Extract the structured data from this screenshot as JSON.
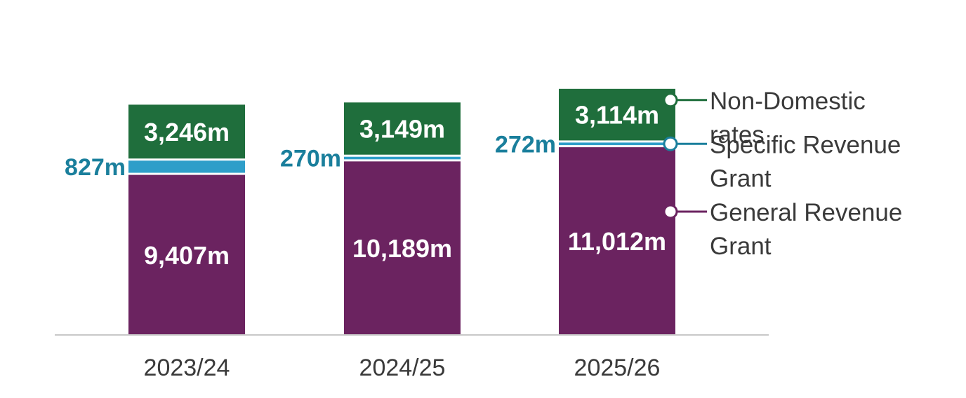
{
  "chart_data": {
    "type": "bar",
    "stacked": true,
    "categories": [
      "2023/24",
      "2024/25",
      "2025/26"
    ],
    "series": [
      {
        "key": "general",
        "name": "General Revenue Grant",
        "legend_lines": [
          "General Revenue",
          "Grant"
        ],
        "values": [
          9407,
          10189,
          11012
        ],
        "labels": [
          "9,407m",
          "10,189m",
          "11,012m"
        ],
        "color": "#6b2360",
        "legend_color": "#6b2360",
        "label_position": "inside"
      },
      {
        "key": "specific",
        "name": "Specific Revenue Grant",
        "legend_lines": [
          "Specific Revenue",
          "Grant"
        ],
        "values": [
          827,
          270,
          272
        ],
        "labels": [
          "827m",
          "270m",
          "272m"
        ],
        "color": "#2e9ec9",
        "legend_color": "#1a7f9c",
        "label_color": "#1a7f9c",
        "label_position": "left"
      },
      {
        "key": "ndr",
        "name": "Non-Domestic rates",
        "legend_lines": [
          "Non-Domestic",
          "rates"
        ],
        "values": [
          3246,
          3149,
          3114
        ],
        "labels": [
          "3,246m",
          "3,149m",
          "3,114m"
        ],
        "color": "#1f6e3c",
        "legend_color": "#1f6e3c",
        "label_position": "inside"
      }
    ],
    "unit": "m",
    "legend_position": "right",
    "grid": false
  }
}
